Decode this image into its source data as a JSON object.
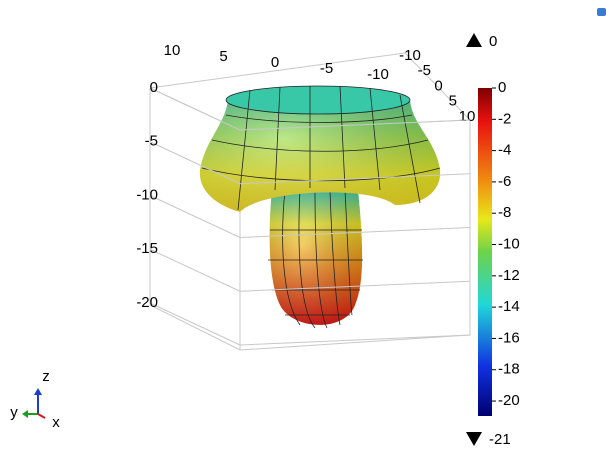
{
  "chart_data": {
    "type": "surface3d",
    "colorbar": {
      "ylim": [
        -21,
        0
      ],
      "yticks": [
        0,
        -2,
        -4,
        -6,
        -8,
        -10,
        -12,
        -14,
        -16,
        -18,
        -20
      ],
      "max": 0,
      "min": -21
    },
    "box_ticks": {
      "top": [
        10,
        5,
        0,
        -5,
        -10
      ],
      "right": [
        -10,
        -5,
        0,
        5,
        10
      ],
      "vertical": [
        0,
        -5,
        -10,
        -15,
        -20
      ]
    },
    "axes": {
      "x": "x",
      "y": "y",
      "z": "z"
    }
  }
}
